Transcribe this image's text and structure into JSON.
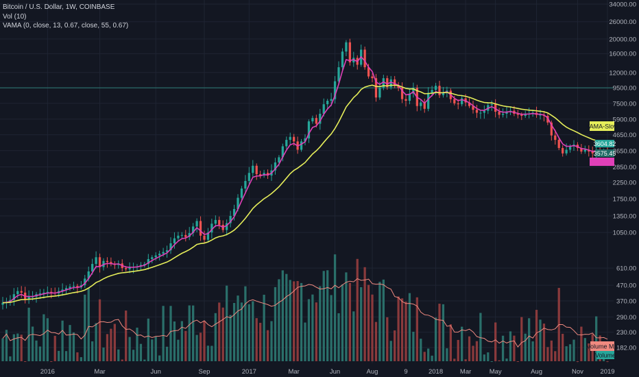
{
  "legend": {
    "line1": "Bitcoin / U.S. Dollar, 1W, COINBASE",
    "line2": "Vol (10)",
    "line3": "VAMA (0, close, 13, 0.67, close, 55, 0.67)"
  },
  "colors": {
    "background": "#131722",
    "grid": "#1f2433",
    "up": "#26a69a",
    "down": "#ef5350",
    "up_volume": "#2a6f6a",
    "down_volume": "#8a3a3c",
    "vama_fast": "#e040b8",
    "vama_slow": "#e6ee5a",
    "volume_ma": "#f08a80",
    "hline": "#2f7f7a",
    "axis_text": "#b2b5be"
  },
  "chart_data": {
    "type": "candlestick",
    "y_scale": "log",
    "price_ticks": [
      182,
      230,
      290,
      370,
      470,
      610,
      1050,
      1350,
      1750,
      2250,
      2850,
      3650,
      4650,
      5900,
      7500,
      9500,
      12000,
      16000,
      20000,
      26000,
      34000
    ],
    "time_ticks": [
      "2016",
      "Mar",
      "Jun",
      "Sep",
      "2017",
      "Mar",
      "Jun",
      "Aug",
      "9",
      "2018",
      "Mar",
      "May",
      "Aug",
      "Nov",
      "2019"
    ],
    "horizontal_line": 9500,
    "price_labels": [
      {
        "text": "3604.82",
        "kind": "last-price"
      },
      {
        "text": "3575.45",
        "kind": "vama-fast"
      }
    ],
    "labels": {
      "vama_slow": "VAMA-Slow",
      "volume_ma": "Volume MA",
      "volume": "Volume"
    },
    "closes": [
      360,
      365,
      375,
      410,
      430,
      420,
      380,
      395,
      395,
      410,
      415,
      420,
      425,
      420,
      415,
      430,
      440,
      450,
      460,
      465,
      455,
      470,
      520,
      580,
      650,
      720,
      620,
      680,
      670,
      650,
      640,
      655,
      610,
      600,
      615,
      620,
      625,
      640,
      650,
      700,
      720,
      740,
      760,
      780,
      800,
      890,
      960,
      1000,
      1010,
      980,
      1040,
      1150,
      1250,
      1000,
      940,
      1050,
      1200,
      1270,
      1180,
      1090,
      1210,
      1350,
      1500,
      1780,
      2050,
      2300,
      2600,
      2900,
      2550,
      2500,
      2600,
      2500,
      2700,
      3050,
      3300,
      3900,
      4300,
      4500,
      4200,
      3700,
      4200,
      4400,
      5700,
      6000,
      5500,
      6400,
      7400,
      7800,
      8000,
      10500,
      13000,
      16500,
      19000,
      14000,
      15000,
      13500,
      17000,
      13000,
      11300,
      11000,
      8200,
      9500,
      11000,
      9600,
      10800,
      9800,
      9500,
      8000,
      7800,
      8700,
      9500,
      7200,
      7600,
      6900,
      8800,
      9200,
      9800,
      8500,
      8900,
      9100,
      8000,
      7500,
      7400,
      8100,
      7600,
      7200,
      6800,
      6500,
      6500,
      6700,
      7300,
      7400,
      6600,
      6300,
      6400,
      6600,
      6700,
      6400,
      6300,
      6200,
      6400,
      6400,
      6500,
      6300,
      6300,
      6200,
      5600,
      4600,
      4300,
      3800,
      3500,
      3700,
      3900,
      4000,
      3800,
      3600,
      3700,
      3600,
      3500,
      3700,
      3600,
      3650,
      3604.82
    ],
    "volume": {
      "range": [
        150,
        480
      ],
      "ma_period": 10,
      "base_values": [
        182,
        195,
        210,
        250,
        205,
        190,
        200,
        215,
        200,
        190,
        198,
        208,
        215,
        195,
        188,
        196,
        205,
        215,
        210,
        200,
        206,
        228,
        252,
        275,
        262,
        240,
        232,
        218,
        208,
        200,
        195,
        190,
        186,
        192,
        194,
        200,
        204,
        196,
        190,
        196,
        205,
        214,
        224,
        214,
        208,
        220,
        240,
        232,
        215,
        222,
        242,
        262,
        283,
        262,
        246,
        256,
        272,
        288,
        268,
        255,
        286,
        306,
        328,
        348,
        330,
        306,
        318,
        336,
        312,
        300,
        288,
        306,
        296,
        318,
        336,
        358,
        348,
        332,
        352,
        384,
        400,
        420,
        402,
        390,
        404,
        420,
        442,
        432,
        420,
        442,
        460,
        476,
        470,
        458,
        444,
        432,
        420,
        410,
        400,
        378,
        362,
        350,
        338,
        326,
        316,
        304,
        296,
        288,
        282,
        276,
        270,
        264,
        260,
        256,
        252,
        248,
        244,
        240,
        236,
        232,
        228,
        225,
        222,
        220,
        218,
        216,
        214,
        213,
        212,
        211,
        210,
        209,
        208,
        207,
        206,
        206,
        205,
        205,
        204,
        204,
        203,
        203,
        202,
        202,
        201,
        201,
        201,
        200,
        200,
        240,
        290,
        310,
        262,
        230,
        215,
        205,
        198,
        192,
        188,
        186,
        185,
        184,
        183,
        182
      ]
    }
  }
}
